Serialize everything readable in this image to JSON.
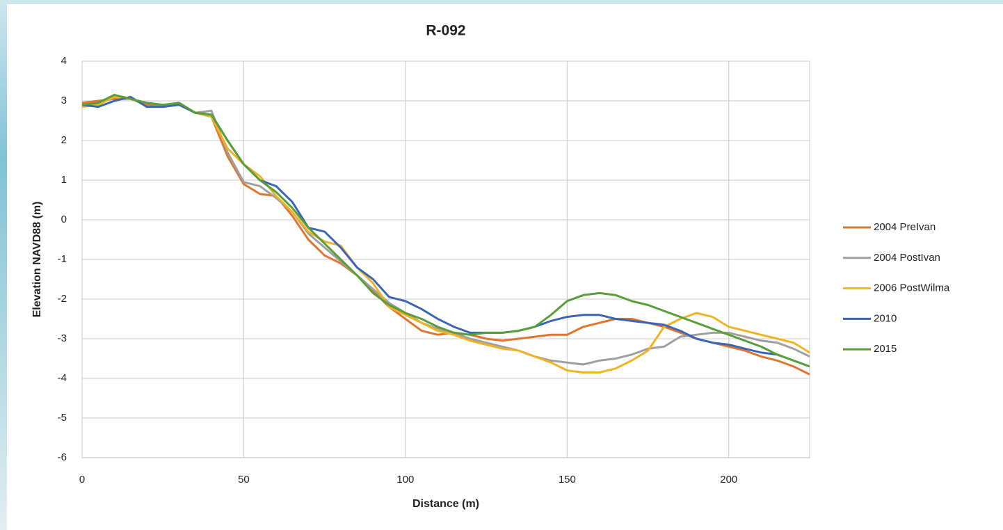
{
  "chart_data": {
    "type": "line",
    "title": "R-092",
    "x_label": "Distance (m)",
    "y_label": "Elevation NAVD88 (m)",
    "x": [
      0,
      5,
      10,
      15,
      20,
      25,
      30,
      35,
      40,
      45,
      50,
      55,
      60,
      65,
      70,
      75,
      80,
      85,
      90,
      95,
      100,
      105,
      110,
      115,
      120,
      125,
      130,
      135,
      140,
      145,
      150,
      155,
      160,
      165,
      170,
      175,
      180,
      185,
      190,
      195,
      200,
      205,
      210,
      215,
      220,
      225
    ],
    "series": [
      {
        "name": "2004 PreIvan",
        "color": "#e0752f",
        "values": [
          2.95,
          3.0,
          3.05,
          3.05,
          2.9,
          2.9,
          2.95,
          2.7,
          2.6,
          1.6,
          0.9,
          0.65,
          0.6,
          0.1,
          -0.5,
          -0.9,
          -1.1,
          -1.4,
          -1.8,
          -2.2,
          -2.5,
          -2.8,
          -2.9,
          -2.85,
          -2.9,
          -3.0,
          -3.05,
          -3.0,
          -2.95,
          -2.9,
          -2.9,
          -2.7,
          -2.6,
          -2.5,
          -2.5,
          -2.6,
          -2.7,
          -2.85,
          -3.0,
          -3.1,
          -3.2,
          -3.3,
          -3.45,
          -3.55,
          -3.7,
          -3.9
        ]
      },
      {
        "name": "2004 PostIvan",
        "color": "#a0a0a0",
        "values": [
          2.9,
          2.9,
          3.1,
          3.05,
          2.95,
          2.9,
          2.9,
          2.7,
          2.75,
          1.7,
          0.95,
          0.85,
          0.55,
          0.2,
          -0.35,
          -0.7,
          -1.05,
          -1.4,
          -1.75,
          -2.1,
          -2.35,
          -2.6,
          -2.75,
          -2.85,
          -3.0,
          -3.1,
          -3.2,
          -3.3,
          -3.45,
          -3.55,
          -3.6,
          -3.65,
          -3.55,
          -3.5,
          -3.4,
          -3.25,
          -3.2,
          -2.95,
          -2.9,
          -2.85,
          -2.85,
          -2.95,
          -3.05,
          -3.1,
          -3.25,
          -3.45
        ]
      },
      {
        "name": "2006 PostWilma",
        "color": "#f0b323",
        "values": [
          2.85,
          2.9,
          3.1,
          3.05,
          2.95,
          2.9,
          2.95,
          2.7,
          2.6,
          1.8,
          1.4,
          1.1,
          0.6,
          0.2,
          -0.3,
          -0.55,
          -0.65,
          -1.2,
          -1.6,
          -2.2,
          -2.4,
          -2.6,
          -2.8,
          -2.9,
          -3.05,
          -3.15,
          -3.25,
          -3.3,
          -3.45,
          -3.6,
          -3.8,
          -3.85,
          -3.85,
          -3.75,
          -3.55,
          -3.3,
          -2.7,
          -2.5,
          -2.35,
          -2.45,
          -2.7,
          -2.8,
          -2.9,
          -3.0,
          -3.1,
          -3.35
        ]
      },
      {
        "name": "2010",
        "color": "#3a66b5",
        "values": [
          2.9,
          2.85,
          3.0,
          3.1,
          2.85,
          2.85,
          2.9,
          2.7,
          2.65,
          2.0,
          1.4,
          1.0,
          0.85,
          0.45,
          -0.2,
          -0.3,
          -0.7,
          -1.2,
          -1.5,
          -1.95,
          -2.05,
          -2.25,
          -2.5,
          -2.7,
          -2.85,
          -2.85,
          -2.85,
          -2.8,
          -2.7,
          -2.55,
          -2.45,
          -2.4,
          -2.4,
          -2.5,
          -2.55,
          -2.6,
          -2.65,
          -2.8,
          -3.0,
          -3.1,
          -3.15,
          -3.25,
          -3.35,
          -3.4,
          -3.55,
          -3.7
        ]
      },
      {
        "name": "2015",
        "color": "#5a9e3a",
        "values": [
          2.9,
          2.95,
          3.15,
          3.05,
          2.95,
          2.9,
          2.95,
          2.7,
          2.65,
          2.0,
          1.4,
          1.0,
          0.7,
          0.3,
          -0.2,
          -0.6,
          -1.0,
          -1.4,
          -1.85,
          -2.15,
          -2.35,
          -2.5,
          -2.7,
          -2.85,
          -2.9,
          -2.85,
          -2.85,
          -2.8,
          -2.7,
          -2.4,
          -2.05,
          -1.9,
          -1.85,
          -1.9,
          -2.05,
          -2.15,
          -2.3,
          -2.45,
          -2.6,
          -2.75,
          -2.9,
          -3.05,
          -3.2,
          -3.4,
          -3.55,
          -3.7
        ]
      }
    ],
    "xlim": [
      0,
      225
    ],
    "xticks": [
      0,
      50,
      100,
      150,
      200
    ],
    "ylim": [
      -6,
      4
    ],
    "yticks": [
      -6,
      -5,
      -4,
      -3,
      -2,
      -1,
      0,
      1,
      2,
      3,
      4
    ],
    "grid": true,
    "legend": "right"
  }
}
